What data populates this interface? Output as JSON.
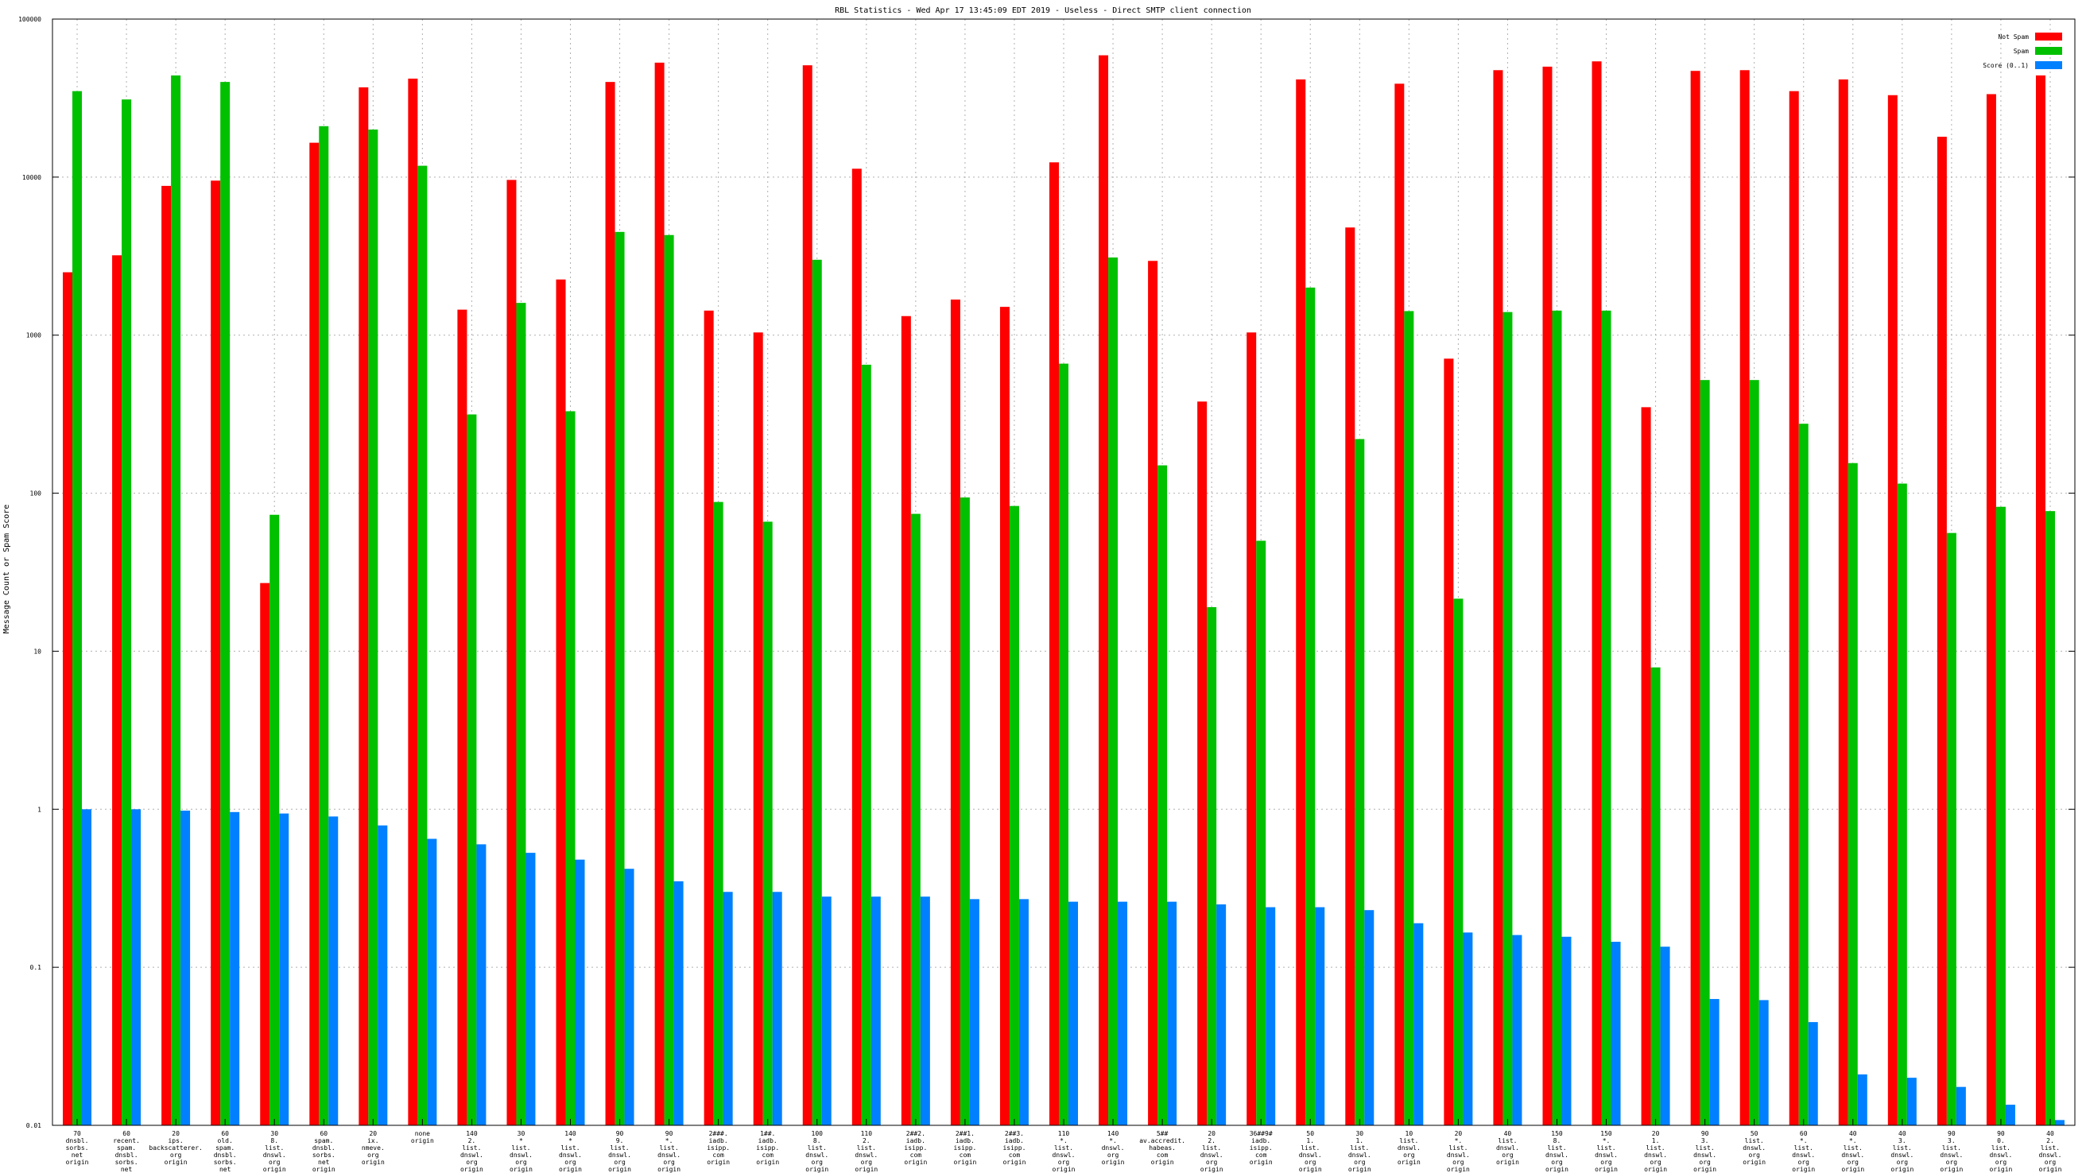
{
  "chart_data": {
    "type": "bar",
    "title": "RBL Statistics - Wed Apr 17 13:45:09 EDT 2019 - Useless - Direct SMTP client connection",
    "ylabel": "Message Count or Spam Score",
    "yscale": "log",
    "ylim": [
      0.01,
      100000
    ],
    "yticks": [
      {
        "value": 0.01,
        "label": "0.01"
      },
      {
        "value": 0.1,
        "label": "0.1"
      },
      {
        "value": 1,
        "label": "1"
      },
      {
        "value": 10,
        "label": "10"
      },
      {
        "value": 100,
        "label": "100"
      },
      {
        "value": 1000,
        "label": "1000"
      },
      {
        "value": 10000,
        "label": "10000"
      },
      {
        "value": 100000,
        "label": "100000"
      }
    ],
    "grid": true,
    "legend_position": "top-right",
    "categories": [
      [
        "70",
        "dnsbl.",
        "sorbs.",
        "net",
        "origin"
      ],
      [
        "60",
        "recent.",
        "spam.",
        "dnsbl.",
        "sorbs.",
        "net",
        "origin"
      ],
      [
        "20",
        "ips.",
        "backscatterer.",
        "org",
        "origin"
      ],
      [
        "60",
        "old.",
        "spam.",
        "dnsbl.",
        "sorbs.",
        "net",
        "origin"
      ],
      [
        "30",
        "8.",
        "list.",
        "dnswl.",
        "org",
        "origin"
      ],
      [
        "60",
        "spam.",
        "dnsbl.",
        "sorbs.",
        "net",
        "origin"
      ],
      [
        "20",
        "ix.",
        "nmeve.",
        "org",
        "origin"
      ],
      [
        "none",
        "origin"
      ],
      [
        "140",
        "2.",
        "list.",
        "dnswl.",
        "org",
        "origin"
      ],
      [
        "30",
        "*",
        "list.",
        "dnswl.",
        "org",
        "origin"
      ],
      [
        "140",
        "*",
        "list.",
        "dnswl.",
        "org",
        "origin"
      ],
      [
        "90",
        "9.",
        "list.",
        "dnswl.",
        "org",
        "origin"
      ],
      [
        "90",
        "*.",
        "list.",
        "dnswl.",
        "org",
        "origin"
      ],
      [
        "2###.",
        "iadb.",
        "isipp.",
        "com",
        "origin"
      ],
      [
        "1##.",
        "iadb.",
        "isipp.",
        "com",
        "origin"
      ],
      [
        "100",
        "8.",
        "list.",
        "dnswl.",
        "org",
        "origin"
      ],
      [
        "110",
        "2.",
        "list.",
        "dnswl.",
        "org",
        "origin"
      ],
      [
        "2##2.",
        "iadb.",
        "isipp.",
        "com",
        "origin"
      ],
      [
        "2##1.",
        "iadb.",
        "isipp.",
        "com",
        "origin"
      ],
      [
        "2##3.",
        "iadb.",
        "isipp.",
        "com",
        "origin"
      ],
      [
        "110",
        "*.",
        "list.",
        "dnswl.",
        "org",
        "origin"
      ],
      [
        "140",
        "*.",
        "dnswl.",
        "org",
        "origin"
      ],
      [
        "5##",
        "av.accredit.",
        "habeas.",
        "com",
        "origin"
      ],
      [
        "20",
        "2.",
        "list.",
        "dnswl.",
        "org",
        "origin"
      ],
      [
        "36##9#",
        "iadb.",
        "isipp.",
        "com",
        "origin"
      ],
      [
        "50",
        "1.",
        "list.",
        "dnswl.",
        "org",
        "origin"
      ],
      [
        "30",
        "1.",
        "list.",
        "dnswl.",
        "org",
        "origin"
      ],
      [
        "10",
        "list.",
        "dnswl.",
        "org",
        "origin"
      ],
      [
        "20",
        "*.",
        "list.",
        "dnswl.",
        "org",
        "origin"
      ],
      [
        "40",
        "list.",
        "dnswl.",
        "org",
        "origin"
      ],
      [
        "150",
        "8.",
        "list.",
        "dnswl.",
        "org",
        "origin"
      ],
      [
        "150",
        "*.",
        "list.",
        "dnswl.",
        "org",
        "origin"
      ],
      [
        "20",
        "1.",
        "list.",
        "dnswl.",
        "org",
        "origin"
      ],
      [
        "90",
        "3.",
        "list.",
        "dnswl.",
        "org",
        "origin"
      ],
      [
        "50",
        "list.",
        "dnswl.",
        "org",
        "origin"
      ],
      [
        "60",
        "*.",
        "list.",
        "dnswl.",
        "org",
        "origin"
      ],
      [
        "40",
        "*.",
        "list.",
        "dnswl.",
        "org",
        "origin"
      ],
      [
        "40",
        "3.",
        "list.",
        "dnswl.",
        "org",
        "origin"
      ],
      [
        "90",
        "3.",
        "list.",
        "dnswl.",
        "org",
        "origin"
      ],
      [
        "90",
        "0.",
        "list.",
        "dnswl.",
        "org",
        "origin"
      ],
      [
        "40",
        "2.",
        "list.",
        "dnswl.",
        "org",
        "origin"
      ]
    ],
    "series": [
      {
        "name": "Not Spam",
        "color": "#ff0000",
        "values": [
          2500,
          3200,
          8800,
          9500,
          27,
          16500,
          37000,
          42000,
          1450,
          9600,
          2250,
          40000,
          53000,
          1430,
          1040,
          51000,
          11300,
          1320,
          1680,
          1510,
          12400,
          59000,
          2950,
          380,
          1040,
          41500,
          4800,
          39000,
          710,
          47500,
          50000,
          54000,
          350,
          47000,
          47500,
          35000,
          41500,
          33000,
          18000,
          33500,
          44000
        ]
      },
      {
        "name": "Spam",
        "color": "#00c000",
        "values": [
          35000,
          31000,
          44000,
          40000,
          73,
          21000,
          20000,
          11800,
          315,
          1600,
          330,
          4500,
          4300,
          88,
          66,
          3000,
          650,
          74,
          94,
          83,
          660,
          3100,
          150,
          19,
          50,
          2000,
          220,
          1420,
          21.5,
          1400,
          1430,
          1430,
          7.9,
          520,
          520,
          275,
          155,
          115,
          56,
          82,
          77
        ]
      },
      {
        "name": "Score (0..1)",
        "color": "#0080ff",
        "values": [
          1.0,
          1.0,
          0.98,
          0.96,
          0.94,
          0.9,
          0.79,
          0.65,
          0.6,
          0.53,
          0.48,
          0.42,
          0.35,
          0.3,
          0.3,
          0.28,
          0.28,
          0.28,
          0.27,
          0.27,
          0.26,
          0.26,
          0.26,
          0.25,
          0.24,
          0.24,
          0.23,
          0.19,
          0.166,
          0.16,
          0.156,
          0.145,
          0.135,
          0.063,
          0.062,
          0.045,
          0.021,
          0.02,
          0.0175,
          0.0135,
          0.0108
        ]
      }
    ]
  }
}
